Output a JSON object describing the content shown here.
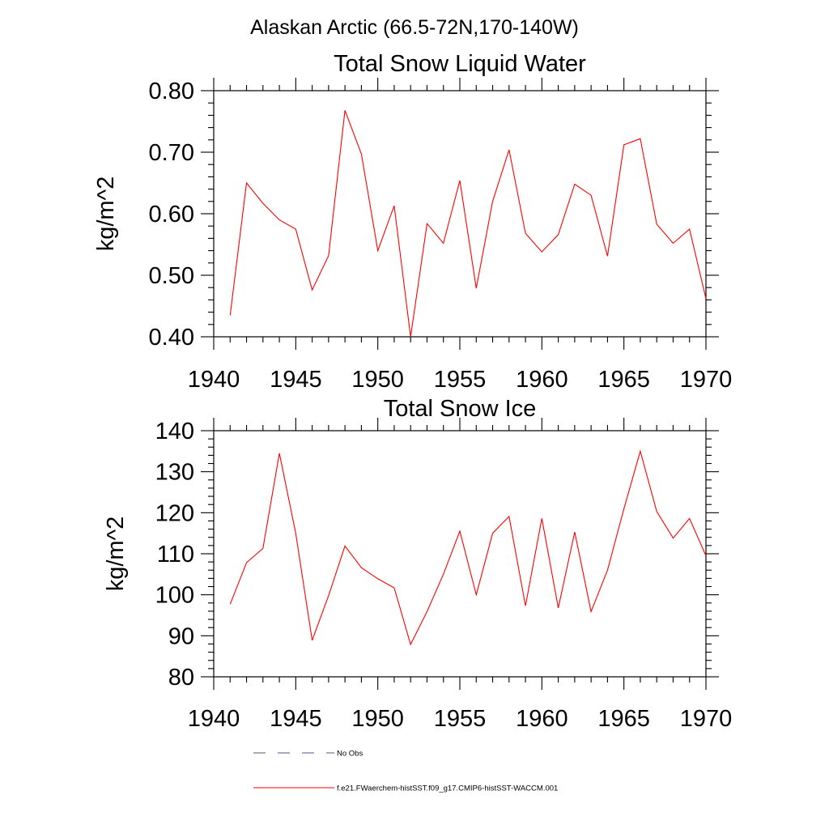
{
  "figure_title": "Alaskan Arctic (66.5-72N,170-140W)",
  "chart_data": [
    {
      "type": "line",
      "title": "Total Snow Liquid Water",
      "ylabel": "kg/m^2",
      "xlabel": "",
      "xlim": [
        1940,
        1970
      ],
      "ylim": [
        0.4,
        0.8
      ],
      "xticks": [
        1940,
        1945,
        1950,
        1955,
        1960,
        1965,
        1970
      ],
      "xtick_labels": [
        "1940",
        "1945",
        "1950",
        "1955",
        "1960",
        "1965",
        "1970"
      ],
      "yticks": [
        0.4,
        0.5,
        0.6,
        0.7,
        0.8
      ],
      "ytick_labels": [
        "0.40",
        "0.50",
        "0.60",
        "0.70",
        "0.80"
      ],
      "grid": false,
      "x": [
        1941,
        1942,
        1943,
        1944,
        1945,
        1946,
        1947,
        1948,
        1949,
        1950,
        1951,
        1952,
        1953,
        1954,
        1955,
        1956,
        1957,
        1958,
        1959,
        1960,
        1961,
        1962,
        1963,
        1964,
        1965,
        1966,
        1967,
        1968,
        1969,
        1970
      ],
      "series": [
        {
          "name": "f.e21.FWaerchem-histSST.f09_g17.CMIP6-histSST-WACCM.001",
          "color": "#ff0000",
          "values": [
            0.435,
            0.65,
            0.617,
            0.59,
            0.575,
            0.476,
            0.532,
            0.768,
            0.697,
            0.54,
            0.613,
            0.4,
            0.584,
            0.552,
            0.654,
            0.479,
            0.62,
            0.704,
            0.568,
            0.538,
            0.566,
            0.648,
            0.63,
            0.531,
            0.712,
            0.722,
            0.583,
            0.552,
            0.575,
            0.462
          ]
        }
      ]
    },
    {
      "type": "line",
      "title": "Total Snow Ice",
      "ylabel": "kg/m^2",
      "xlabel": "",
      "xlim": [
        1940,
        1970
      ],
      "ylim": [
        80,
        140
      ],
      "xticks": [
        1940,
        1945,
        1950,
        1955,
        1960,
        1965,
        1970
      ],
      "xtick_labels": [
        "1940",
        "1945",
        "1950",
        "1955",
        "1960",
        "1965",
        "1970"
      ],
      "yticks": [
        80,
        90,
        100,
        110,
        120,
        130,
        140
      ],
      "ytick_labels": [
        "80",
        "90",
        "100",
        "110",
        "120",
        "130",
        "140"
      ],
      "grid": false,
      "x": [
        1941,
        1942,
        1943,
        1944,
        1945,
        1946,
        1947,
        1948,
        1949,
        1950,
        1951,
        1952,
        1953,
        1954,
        1955,
        1956,
        1957,
        1958,
        1959,
        1960,
        1961,
        1962,
        1963,
        1964,
        1965,
        1966,
        1967,
        1968,
        1969,
        1970
      ],
      "series": [
        {
          "name": "f.e21.FWaerchem-histSST.f09_g17.CMIP6-histSST-WACCM.001",
          "color": "#ff0000",
          "values": [
            97.7,
            107.8,
            111.3,
            134.5,
            115.0,
            88.9,
            99.8,
            111.9,
            106.6,
            103.9,
            101.7,
            87.9,
            95.9,
            105.0,
            115.5,
            100.0,
            115.0,
            119.1,
            97.3,
            118.6,
            96.8,
            115.3,
            95.9,
            106.0,
            121.0,
            135.0,
            120.3,
            113.8,
            118.6,
            109.5
          ]
        }
      ]
    }
  ],
  "legend": {
    "placement": "bottom",
    "entries": [
      {
        "label": "No Obs",
        "style": "dashed",
        "color": "#4a5a8a"
      },
      {
        "label": "f.e21.FWaerchem-histSST.f09_g17.CMIP6-histSST-WACCM.001",
        "style": "solid",
        "color": "#ff0000"
      }
    ]
  }
}
